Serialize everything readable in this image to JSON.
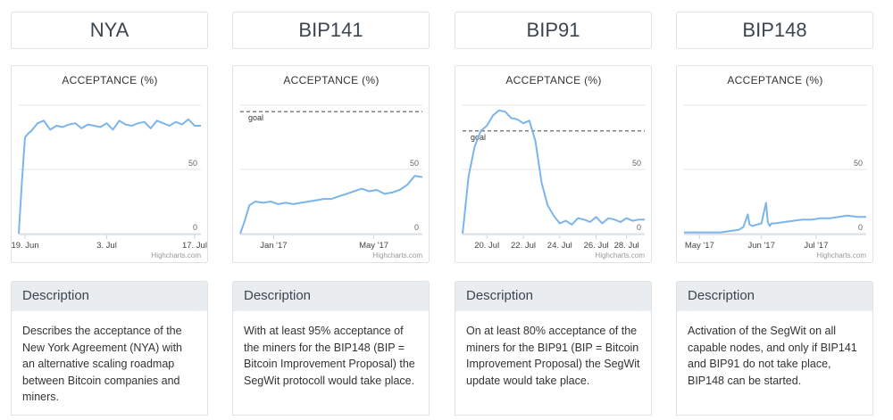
{
  "panels": [
    {
      "title": "NYA",
      "description_heading": "Description",
      "description": "Describes the acceptance of the New York Agreement (NYA) with an alternative scaling roadmap between Bitcoin companies and miners."
    },
    {
      "title": "BIP141",
      "description_heading": "Description",
      "description": "With at least 95% acceptance of the miners for the BIP148 (BIP = Bitcoin Improvement Proposal) the SegWit protocoll would take place."
    },
    {
      "title": "BIP91",
      "description_heading": "Description",
      "description": "On at least 80% acceptance of the miners for the BIP91 (BIP = Bitcoin Improvement Proposal) the SegWit update would take place."
    },
    {
      "title": "BIP148",
      "description_heading": "Description",
      "description": "Activation of the SegWit on all capable nodes, and only if BIP141 and BIP91 do not take place, BIP148 can be started."
    }
  ],
  "chart_data": [
    {
      "type": "line",
      "title": "ACCEPTANCE (%)",
      "credit": "Highcharts.com",
      "ylim": [
        0,
        100
      ],
      "yticks": [
        0,
        50
      ],
      "line_color": "#7cb5ec",
      "grid": true,
      "x": [
        0,
        0.5,
        1,
        1.5,
        2,
        3,
        4,
        5,
        6,
        7,
        8,
        9,
        10,
        11,
        12,
        13,
        14,
        15,
        16,
        17,
        18,
        19,
        20,
        21,
        22,
        23,
        24,
        25,
        26,
        27,
        28,
        29
      ],
      "xlim": [
        0,
        29
      ],
      "xticks": [
        {
          "x": 1,
          "label": "19. Jun"
        },
        {
          "x": 14,
          "label": "3. Jul"
        },
        {
          "x": 28,
          "label": "17. Jul"
        }
      ],
      "series": [
        {
          "values": [
            0,
            40,
            75,
            78,
            80,
            86,
            88,
            81,
            84,
            83,
            85,
            86,
            82,
            85,
            84,
            83,
            86,
            81,
            88,
            85,
            84,
            86,
            87,
            82,
            88,
            86,
            84,
            87,
            85,
            89,
            84,
            84
          ]
        }
      ]
    },
    {
      "type": "line",
      "title": "ACCEPTANCE (%)",
      "credit": "Highcharts.com",
      "ylim": [
        0,
        100
      ],
      "yticks": [
        0,
        50
      ],
      "line_color": "#7cb5ec",
      "grid": true,
      "goal": {
        "value": 95,
        "label": "goal"
      },
      "x": [
        0,
        0.3,
        0.6,
        1,
        1.5,
        2,
        2.5,
        3,
        3.5,
        4,
        4.5,
        5,
        5.5,
        6,
        6.5,
        7,
        7.5,
        8,
        8.5,
        9,
        9.5,
        10,
        10.5,
        11,
        11.5,
        12
      ],
      "xlim": [
        0,
        12
      ],
      "xticks": [
        {
          "x": 2.2,
          "label": "Jan '17"
        },
        {
          "x": 8.8,
          "label": "May '17"
        }
      ],
      "series": [
        {
          "values": [
            0,
            10,
            22,
            25,
            24,
            25,
            23,
            24,
            23,
            24,
            25,
            26,
            27,
            27,
            29,
            31,
            33,
            35,
            33,
            34,
            31,
            32,
            34,
            38,
            45,
            44
          ]
        }
      ]
    },
    {
      "type": "line",
      "title": "ACCEPTANCE (%)",
      "credit": "Highcharts.com",
      "ylim": [
        0,
        100
      ],
      "yticks": [
        0,
        50
      ],
      "line_color": "#7cb5ec",
      "grid": true,
      "goal": {
        "value": 80,
        "label": "goal"
      },
      "x": [
        0,
        0.5,
        1,
        1.5,
        2,
        2.5,
        3,
        3.5,
        4,
        4.5,
        5,
        5.5,
        6,
        6.5,
        7,
        7.5,
        8,
        8.5,
        9,
        9.5,
        10,
        10.5,
        11,
        11.5,
        12,
        12.5,
        13,
        13.5,
        14,
        14.5,
        15
      ],
      "xlim": [
        0,
        15
      ],
      "xticks": [
        {
          "x": 2,
          "label": "20. Jul"
        },
        {
          "x": 5,
          "label": "22. Jul"
        },
        {
          "x": 8,
          "label": "24. Jul"
        },
        {
          "x": 11,
          "label": "26. Jul"
        },
        {
          "x": 13.5,
          "label": "28. Jul"
        }
      ],
      "series": [
        {
          "values": [
            0,
            45,
            68,
            80,
            84,
            92,
            96,
            95,
            90,
            89,
            86,
            88,
            72,
            40,
            22,
            14,
            8,
            10,
            7,
            12,
            11,
            9,
            13,
            8,
            12,
            11,
            9,
            12,
            10,
            11,
            11
          ]
        }
      ]
    },
    {
      "type": "line",
      "title": "ACCEPTANCE (%)",
      "credit": "Highcharts.com",
      "ylim": [
        0,
        100
      ],
      "yticks": [
        0,
        50
      ],
      "line_color": "#7cb5ec",
      "grid": true,
      "x": [
        0,
        1,
        2,
        3,
        4,
        5,
        6,
        6.5,
        7,
        7.2,
        7.5,
        8,
        8.5,
        9,
        9.2,
        9.4,
        9.6,
        10,
        11,
        12,
        13,
        14,
        15,
        16,
        17,
        18,
        19,
        20
      ],
      "xlim": [
        0,
        20
      ],
      "xticks": [
        {
          "x": 1.7,
          "label": "May '17"
        },
        {
          "x": 8.5,
          "label": "Jun '17"
        },
        {
          "x": 14.5,
          "label": "Jul '17"
        }
      ],
      "series": [
        {
          "values": [
            1,
            1,
            1,
            1,
            1,
            2,
            3,
            5,
            15,
            7,
            6,
            7,
            8,
            24,
            9,
            6,
            8,
            8,
            9,
            10,
            11,
            11,
            12,
            12,
            13,
            14,
            13,
            13
          ]
        }
      ]
    }
  ]
}
